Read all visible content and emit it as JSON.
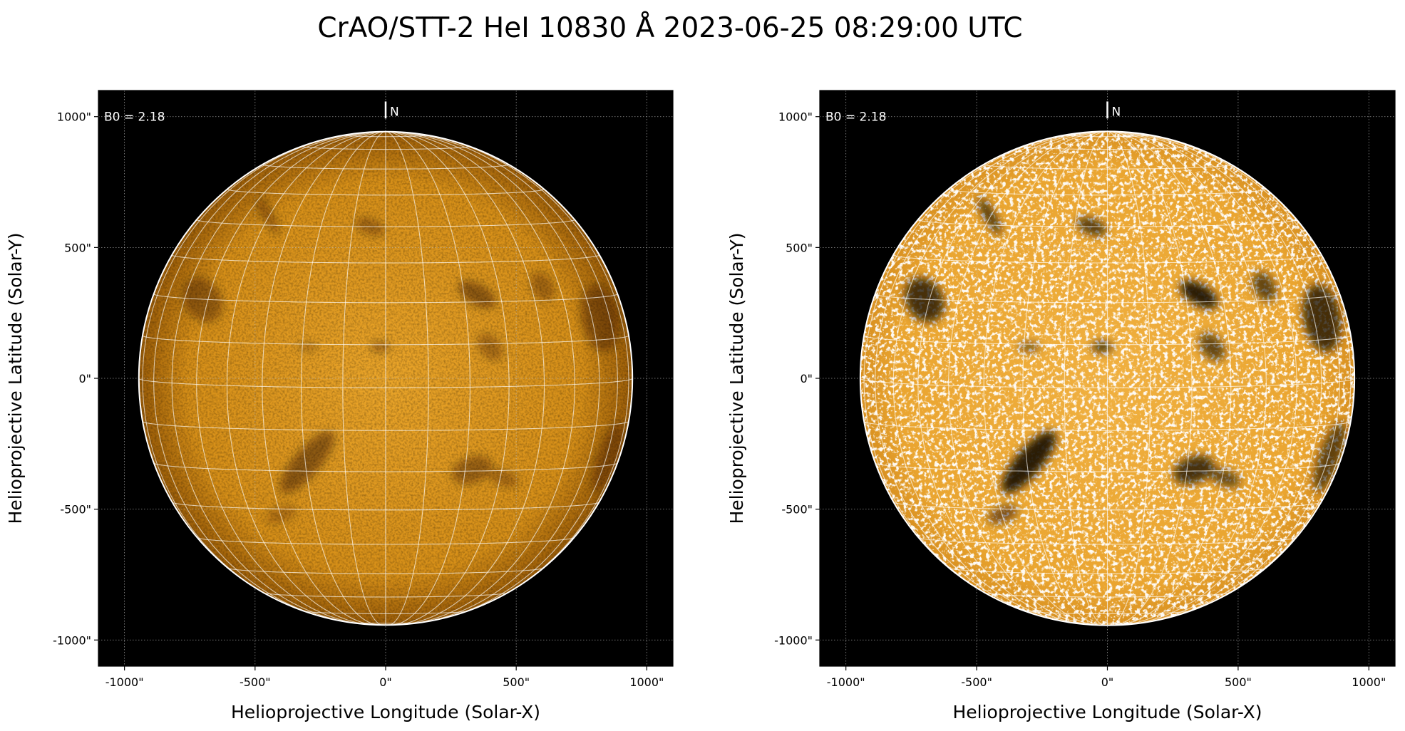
{
  "title": "CrAO/STT-2 HeI 10830 Å 2023-06-25 08:29:00 UTC",
  "colors": {
    "disk_center": "#e8a224",
    "disk_edge": "#a8650a",
    "background": "#000000",
    "grid": "#ffffff"
  },
  "chart_data": [
    {
      "type": "image",
      "panel": "left",
      "description_of_scaling": "normal contrast",
      "xlabel": "Helioprojective Longitude (Solar-X)",
      "ylabel": "Helioprojective Latitude (Solar-Y)",
      "xlim": [
        -1100,
        1100
      ],
      "ylim": [
        -1100,
        1100
      ],
      "xticks": [
        -1000,
        -500,
        0,
        500,
        1000
      ],
      "yticks": [
        -1000,
        -500,
        0,
        500,
        1000
      ],
      "xtick_labels": [
        "-1000\"",
        "-500\"",
        "0\"",
        "500\"",
        "1000\""
      ],
      "ytick_labels": [
        "-1000\"",
        "-500\"",
        "0\"",
        "500\"",
        "1000\""
      ],
      "grid": true,
      "heliographic_grid_spacing_deg": 10,
      "solar_radius_arcsec": 945,
      "annotation_b0": "B0 = 2.18",
      "north_label": "N"
    },
    {
      "type": "image",
      "panel": "right",
      "description_of_scaling": "high contrast",
      "xlabel": "Helioprojective Longitude (Solar-X)",
      "ylabel": "Helioprojective Latitude (Solar-Y)",
      "xlim": [
        -1100,
        1100
      ],
      "ylim": [
        -1100,
        1100
      ],
      "xticks": [
        -1000,
        -500,
        0,
        500,
        1000
      ],
      "yticks": [
        -1000,
        -500,
        0,
        500,
        1000
      ],
      "xtick_labels": [
        "-1000\"",
        "-500\"",
        "0\"",
        "500\"",
        "1000\""
      ],
      "ytick_labels": [
        "-1000\"",
        "-500\"",
        "0\"",
        "500\"",
        "1000\""
      ],
      "grid": true,
      "heliographic_grid_spacing_deg": 10,
      "solar_radius_arcsec": 945,
      "annotation_b0": "B0 = 2.18",
      "north_label": "N"
    }
  ]
}
